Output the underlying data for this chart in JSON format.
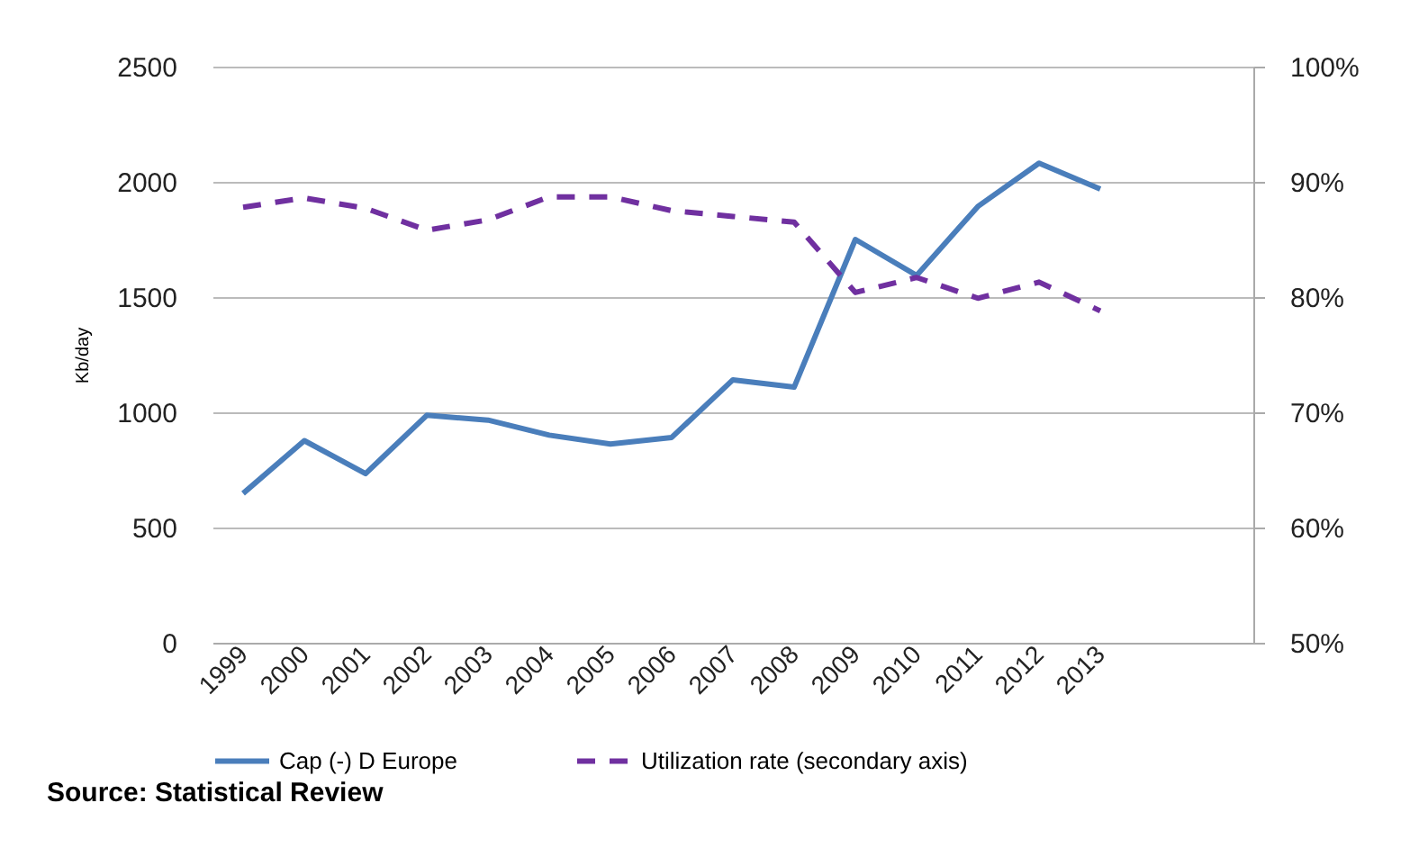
{
  "chart_data": {
    "type": "line",
    "ylabel": "Kb/day",
    "categories": [
      "1999",
      "2000",
      "2001",
      "2002",
      "2003",
      "2004",
      "2005",
      "2006",
      "2007",
      "2008",
      "2009",
      "2010",
      "2011",
      "2012",
      "2013",
      null,
      null
    ],
    "series": [
      {
        "name": "Cap (-) D Europe",
        "color": "#4a7ebb",
        "line_style": "solid",
        "values": [
          648,
          877,
          734,
          987,
          966,
          901,
          862,
          891,
          1141,
          1109,
          1750,
          1594,
          1893,
          2081,
          1969,
          null,
          null
        ]
      },
      {
        "name": "Utilization rate (secondary axis)",
        "color": "#7030a0",
        "line_style": "dashed",
        "axis": "y2",
        "values": [
          87.8,
          88.6,
          87.7,
          85.8,
          86.7,
          88.7,
          88.7,
          87.5,
          87.0,
          86.5,
          80.4,
          81.7,
          79.9,
          81.3,
          78.8,
          null,
          null
        ]
      }
    ],
    "ylim": [
      0,
      2500
    ],
    "yticks": [
      0,
      500,
      1000,
      1500,
      2000,
      2500
    ],
    "y2lim": [
      50,
      100
    ],
    "y2ticks": [
      {
        "value": 50,
        "label": "50%"
      },
      {
        "value": 60,
        "label": "60%"
      },
      {
        "value": 70,
        "label": "70%"
      },
      {
        "value": 80,
        "label": "80%"
      },
      {
        "value": 90,
        "label": "90%"
      },
      {
        "value": 100,
        "label": "100%"
      }
    ],
    "grid": "y",
    "legend": "bottom",
    "annotations": [
      "Source: Statistical Review"
    ]
  }
}
